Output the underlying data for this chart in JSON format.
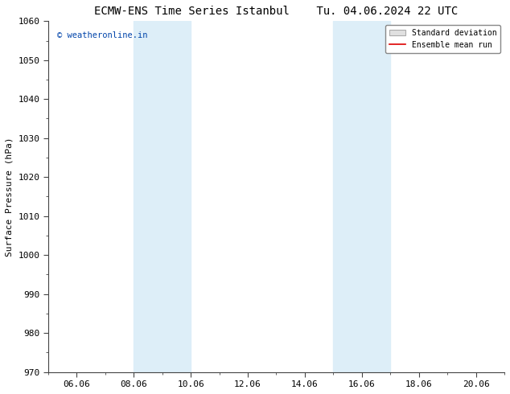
{
  "title_left": "ECMW-ENS Time Series Istanbul",
  "title_right": "Tu. 04.06.2024 22 UTC",
  "ylabel": "Surface Pressure (hPa)",
  "ylim": [
    970,
    1060
  ],
  "yticks": [
    970,
    980,
    990,
    1000,
    1010,
    1020,
    1030,
    1040,
    1050,
    1060
  ],
  "xlim_days": [
    5.0,
    21.0
  ],
  "xtick_labels": [
    "06.06",
    "08.06",
    "10.06",
    "12.06",
    "14.06",
    "16.06",
    "18.06",
    "20.06"
  ],
  "xtick_positions": [
    6,
    8,
    10,
    12,
    14,
    16,
    18,
    20
  ],
  "shaded_regions": [
    {
      "xmin": 8.0,
      "xmax": 10.0
    },
    {
      "xmin": 15.0,
      "xmax": 17.0
    }
  ],
  "shaded_color": "#ddeef8",
  "watermark": "© weatheronline.in",
  "watermark_color": "#0044aa",
  "background_color": "#ffffff",
  "plot_bg_color": "#ffffff",
  "legend_std_label": "Standard deviation",
  "legend_mean_label": "Ensemble mean run",
  "legend_std_facecolor": "#e0e0e0",
  "legend_std_edgecolor": "#aaaaaa",
  "legend_mean_color": "#dd0000",
  "title_fontsize": 10,
  "axis_label_fontsize": 8,
  "tick_fontsize": 8,
  "watermark_fontsize": 7.5
}
